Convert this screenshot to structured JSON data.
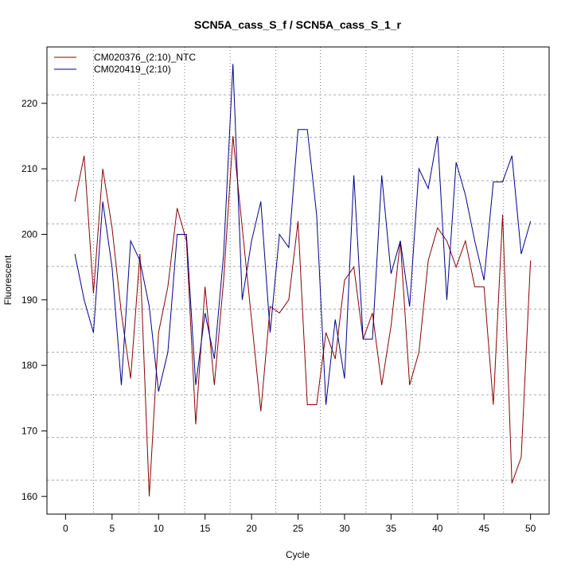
{
  "chart_data": {
    "type": "line",
    "title": "SCN5A_cass_S_f / SCN5A_cass_S_1_r",
    "xlabel": "Cycle",
    "ylabel": "Fluorescent",
    "xlim": [
      -2,
      52
    ],
    "ylim": [
      157.3,
      228.6
    ],
    "xticks": [
      0,
      5,
      10,
      15,
      20,
      25,
      30,
      35,
      40,
      45,
      50
    ],
    "yticks": [
      160,
      170,
      180,
      190,
      200,
      210,
      220
    ],
    "grid_x": [
      3,
      7.9,
      12.8,
      17.7,
      22.6,
      27.4,
      32.3,
      37.3,
      42.2,
      47.1
    ],
    "grid_y": [
      162.5,
      169,
      175.5,
      182,
      188.6,
      195.1,
      201.6,
      208.2,
      214.8,
      221.3
    ],
    "legend_position": "top-left",
    "x": [
      1,
      2,
      3,
      4,
      5,
      6,
      7,
      8,
      9,
      10,
      11,
      12,
      13,
      14,
      15,
      16,
      17,
      18,
      19,
      20,
      21,
      22,
      23,
      24,
      25,
      26,
      27,
      28,
      29,
      30,
      31,
      32,
      33,
      34,
      35,
      36,
      37,
      38,
      39,
      40,
      41,
      42,
      43,
      44,
      45,
      46,
      47,
      48,
      49,
      50
    ],
    "series": [
      {
        "name": "CM020376_(2:10)_NTC",
        "color": "#8b0000",
        "values": [
          205,
          212,
          191,
          210,
          201,
          188,
          178,
          197,
          160,
          185,
          192,
          204,
          199,
          171,
          192,
          177,
          193,
          215,
          201,
          187,
          173,
          189,
          188,
          190,
          202,
          174,
          174,
          185,
          181,
          193,
          195,
          184,
          188,
          177,
          186,
          199,
          177,
          182,
          196,
          201,
          199,
          195,
          199,
          192,
          192,
          174,
          203,
          162,
          166,
          196
        ]
      },
      {
        "name": "CM020419_(2:10)",
        "color": "#00008b",
        "values": [
          197,
          190,
          185,
          205,
          195,
          177,
          199,
          196,
          189,
          176,
          182,
          200,
          200,
          177,
          188,
          181,
          197,
          226,
          190,
          199,
          205,
          185,
          200,
          198,
          216,
          216,
          203,
          174,
          187,
          178,
          209,
          184,
          184,
          209,
          194,
          199,
          189,
          210,
          207,
          215,
          190,
          211,
          206,
          199,
          193,
          208,
          208,
          212,
          197,
          202
        ]
      }
    ]
  }
}
